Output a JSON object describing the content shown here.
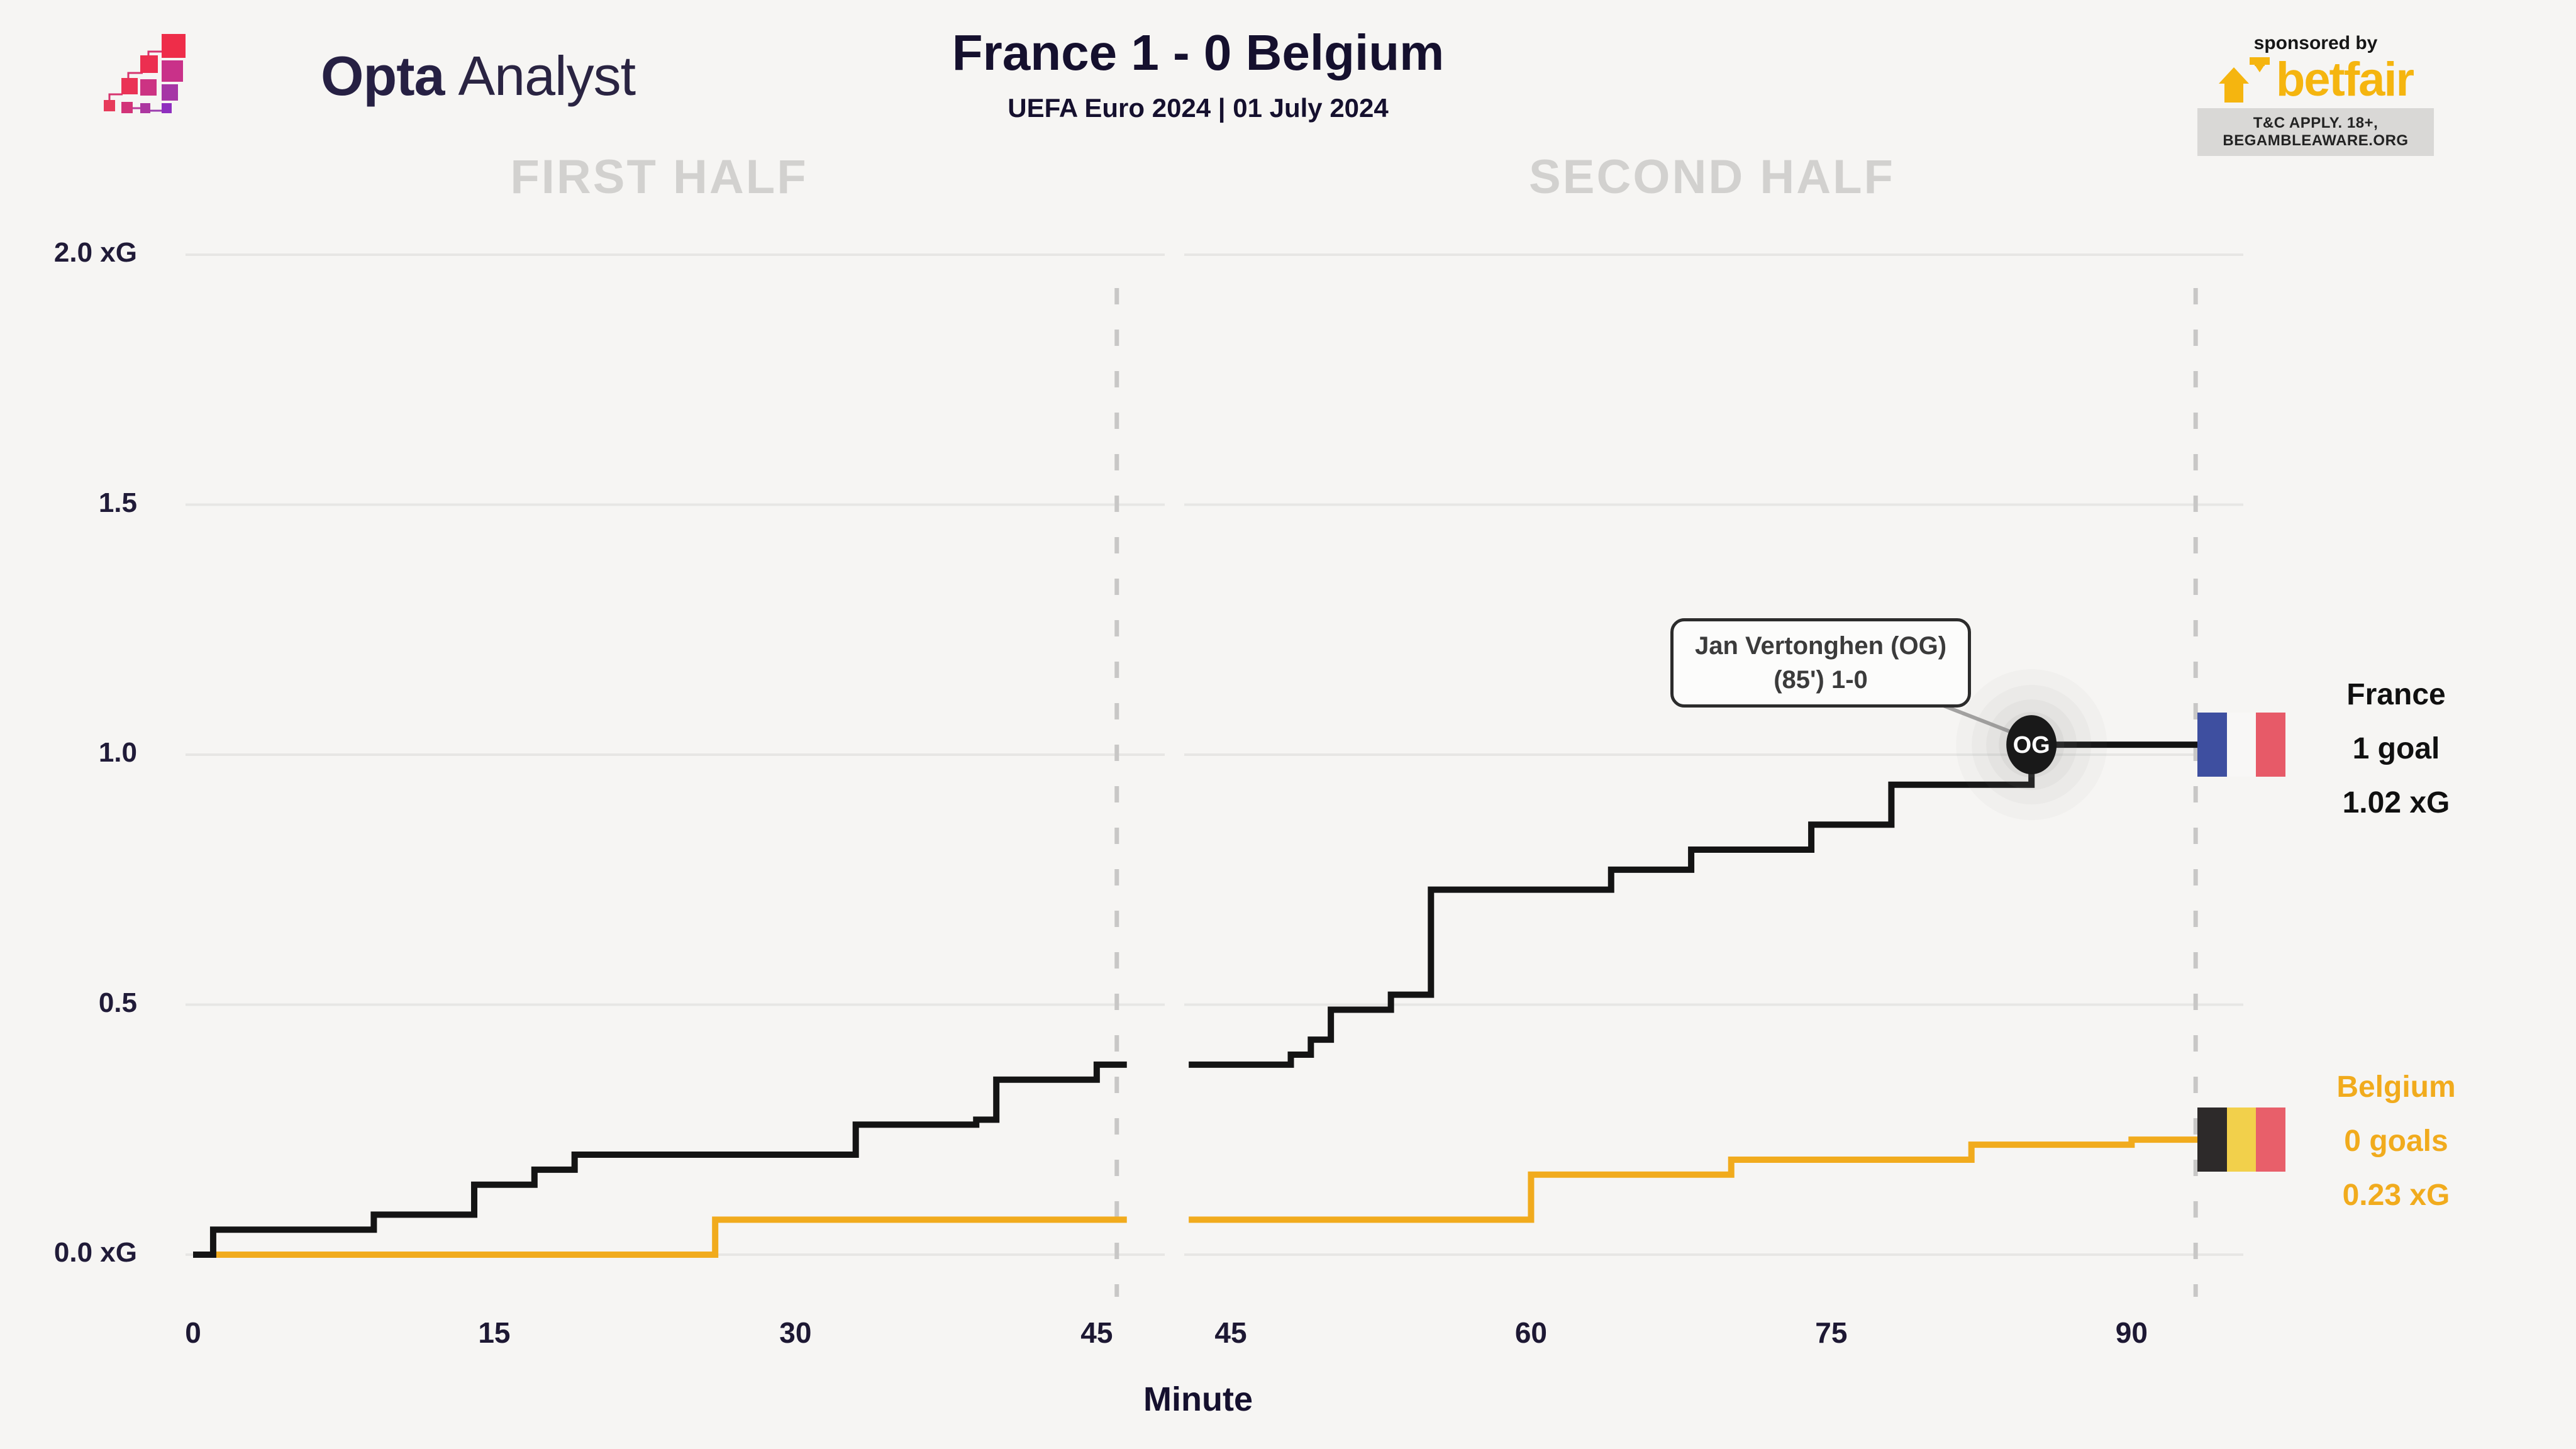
{
  "header": {
    "logo": {
      "brand_bold": "Opta",
      "brand_light": "Analyst"
    },
    "title": "France 1 - 0 Belgium",
    "subtitle": "UEFA Euro 2024 | 01 July 2024",
    "sponsor": {
      "tagline": "sponsored by",
      "brand": "betfair",
      "terms": "T&C APPLY. 18+, BEGAMBLEAWARE.ORG"
    }
  },
  "chart_data": {
    "type": "line",
    "subtype": "step-after cumulative xG race, two half panels",
    "title": "France 1 - 0 Belgium",
    "xlabel": "Minute",
    "y_axis": {
      "range": [
        0,
        2.0
      ],
      "ticks": [
        {
          "label": "2.0 xG",
          "value": 2.0
        },
        {
          "label": "1.5",
          "value": 1.5
        },
        {
          "label": "1.0",
          "value": 1.0
        },
        {
          "label": "0.5",
          "value": 0.5
        },
        {
          "label": "0.0 xG",
          "value": 0.0
        }
      ]
    },
    "panels": [
      {
        "title": "FIRST HALF",
        "x_ticks": [
          0,
          15,
          30,
          45
        ],
        "dashed_minute": 46
      },
      {
        "title": "SECOND HALF",
        "x_ticks": [
          45,
          60,
          75,
          90
        ],
        "dashed_minute": 93.2
      }
    ],
    "series": [
      {
        "name": "France",
        "color": "#141414",
        "flag_colors": [
          "#3E4FA0",
          "#F8F7F6",
          "#E75A68"
        ],
        "goals": 1,
        "goals_label": "1 goal",
        "xg_label": "1.02 xG",
        "total_xg": 1.02,
        "first_half_steps": [
          [
            0,
            0
          ],
          [
            1,
            0.05
          ],
          [
            9,
            0.08
          ],
          [
            14,
            0.14
          ],
          [
            17,
            0.17
          ],
          [
            19,
            0.2
          ],
          [
            33,
            0.26
          ],
          [
            39,
            0.27
          ],
          [
            40,
            0.35
          ],
          [
            45,
            0.38
          ]
        ],
        "second_half_steps": [
          [
            45,
            0.38
          ],
          [
            48,
            0.4
          ],
          [
            49,
            0.43
          ],
          [
            50,
            0.49
          ],
          [
            53,
            0.52
          ],
          [
            55,
            0.73
          ],
          [
            64,
            0.77
          ],
          [
            68,
            0.81
          ],
          [
            74,
            0.86
          ],
          [
            78,
            0.94
          ],
          [
            85,
            1.02
          ]
        ]
      },
      {
        "name": "Belgium",
        "color": "#F1AB1D",
        "flag_colors": [
          "#2D2A2A",
          "#F2D04B",
          "#E85F6A"
        ],
        "goals": 0,
        "goals_label": "0 goals",
        "xg_label": "0.23 xG",
        "total_xg": 0.23,
        "first_half_steps": [
          [
            0,
            0
          ],
          [
            26,
            0.07
          ]
        ],
        "second_half_steps": [
          [
            45,
            0.07
          ],
          [
            60,
            0.16
          ],
          [
            70,
            0.19
          ],
          [
            82,
            0.22
          ],
          [
            90,
            0.23
          ]
        ]
      }
    ],
    "annotation": {
      "line1": "Jan Vertonghen (OG)",
      "line2": "(85') 1-0",
      "marker_label": "OG",
      "minute": 85,
      "value": 1.02,
      "series": "France"
    }
  }
}
